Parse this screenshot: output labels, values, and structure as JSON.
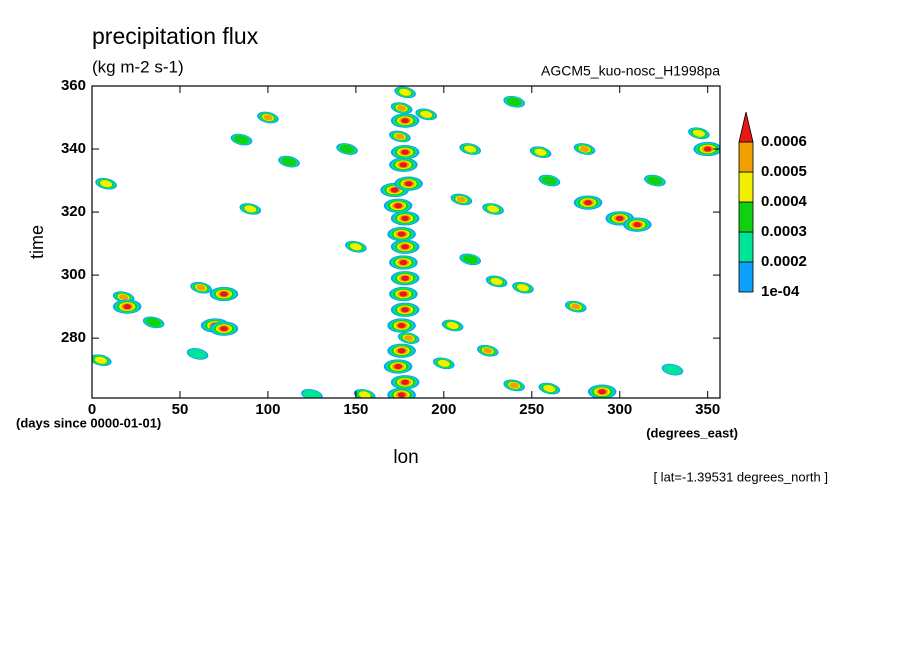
{
  "chart_data": {
    "type": "contour",
    "title": "precipitation flux",
    "subtitle": "(kg m-2 s-1)",
    "model_label": "AGCM5_kuo-nosc_H1998pa",
    "x_label": "lon",
    "y_label": "time",
    "x_unit_label": "(degrees_east)",
    "y_unit_label": "(days since 0000-01-01)",
    "note": "[ lat=-1.39531 degrees_north ]",
    "xlim": [
      0,
      357
    ],
    "ylim": [
      261,
      360
    ],
    "xticks": [
      0,
      50,
      100,
      150,
      200,
      250,
      300,
      350
    ],
    "yticks": [
      280,
      300,
      320,
      340,
      360
    ],
    "levels": [
      {
        "value": 0.0001,
        "label": "1e-04"
      },
      0.0002,
      0.0003,
      0.0004,
      0.0005,
      0.0006
    ],
    "colors": [
      "#0ca0ff",
      "#00e49a",
      "#10d010",
      "#f0f000",
      "#f0a000",
      "#e81818"
    ],
    "x": [
      176,
      178,
      174,
      176,
      180,
      176,
      178,
      177,
      178,
      177,
      178,
      176,
      178,
      174,
      172,
      180,
      177,
      178,
      175,
      178,
      176,
      178,
      18,
      20,
      70,
      75,
      62,
      75,
      5,
      35,
      90,
      100,
      112,
      85,
      150,
      145,
      8,
      210,
      228,
      215,
      255,
      282,
      300,
      310,
      280,
      350,
      345,
      205,
      225,
      240,
      260,
      290,
      275,
      230,
      245,
      215,
      200,
      155,
      60,
      125,
      330,
      320,
      190,
      240,
      260
    ],
    "y": [
      262,
      266,
      271,
      276,
      280,
      284,
      289,
      294,
      299,
      304,
      309,
      313,
      318,
      322,
      327,
      329,
      335,
      339,
      344,
      349,
      353,
      358,
      293,
      290,
      284,
      283,
      296,
      294,
      273,
      285,
      321,
      350,
      336,
      343,
      309,
      340,
      329,
      324,
      321,
      340,
      339,
      323,
      318,
      316,
      340,
      340,
      345,
      284,
      276,
      265,
      264,
      263,
      290,
      298,
      296,
      305,
      272,
      262,
      275,
      262,
      270,
      330,
      351,
      355,
      330
    ],
    "values": [
      0.0007,
      0.0007,
      0.0007,
      0.0007,
      0.0005,
      0.0007,
      0.0007,
      0.0007,
      0.0007,
      0.0007,
      0.0006,
      0.0007,
      0.0007,
      0.0006,
      0.0007,
      0.0007,
      0.0007,
      0.0007,
      0.0005,
      0.0007,
      0.0005,
      0.0004,
      0.0005,
      0.0006,
      0.0006,
      0.0006,
      0.0005,
      0.0006,
      0.0004,
      0.0003,
      0.0004,
      0.0005,
      0.0003,
      0.0003,
      0.0004,
      0.0003,
      0.0004,
      0.0005,
      0.0004,
      0.0004,
      0.0004,
      0.0006,
      0.0006,
      0.0007,
      0.0005,
      0.0006,
      0.0004,
      0.0004,
      0.0005,
      0.0005,
      0.0004,
      0.0007,
      0.0005,
      0.0004,
      0.0004,
      0.0003,
      0.0004,
      0.0004,
      0.0002,
      0.0002,
      0.0002,
      0.0003,
      0.0004,
      0.0003,
      0.0003
    ]
  }
}
